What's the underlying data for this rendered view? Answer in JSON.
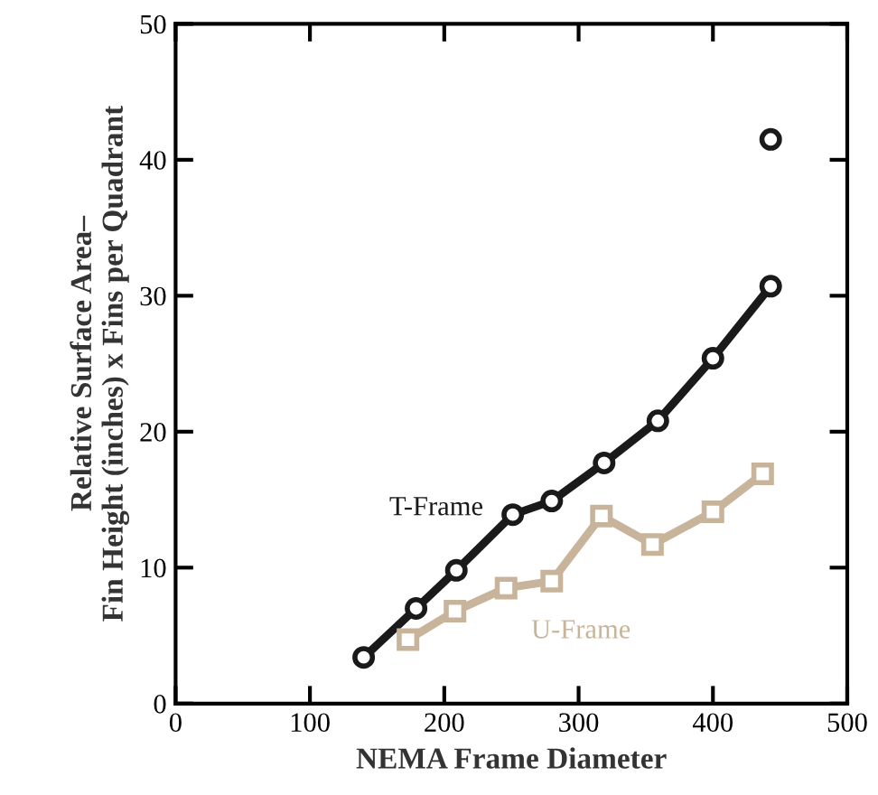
{
  "chart_data": {
    "type": "line",
    "xlabel": "NEMA Frame Diameter",
    "ylabel": "Relative Surface Area–\nFin Height (inches) x Fins per Quadrant",
    "xlim": [
      0,
      500
    ],
    "xticks": [
      0,
      100,
      200,
      300,
      400,
      500
    ],
    "ylim": [
      0,
      50
    ],
    "yticks": [
      0,
      10,
      20,
      30,
      40,
      50
    ],
    "grid": false,
    "legend": false,
    "series": [
      {
        "name": "T-Frame",
        "color": "#1a1a1a",
        "marker": "circle",
        "x": [
          140,
          179,
          209,
          251,
          280,
          319,
          359,
          400,
          443
        ],
        "values": [
          3.4,
          7.0,
          9.8,
          13.9,
          14.9,
          17.7,
          20.8,
          25.4,
          30.7
        ]
      },
      {
        "name": "U-Frame",
        "color": "#c8b49a",
        "marker": "square",
        "x": [
          173,
          208,
          246,
          280,
          317,
          355,
          400,
          437
        ],
        "values": [
          4.7,
          6.8,
          8.5,
          9.0,
          13.8,
          11.7,
          14.1,
          16.9
        ]
      },
      {
        "type": "scatter",
        "color": "#1a1a1a",
        "marker": "circle",
        "x": [
          443
        ],
        "values": [
          41.5
        ]
      }
    ]
  }
}
